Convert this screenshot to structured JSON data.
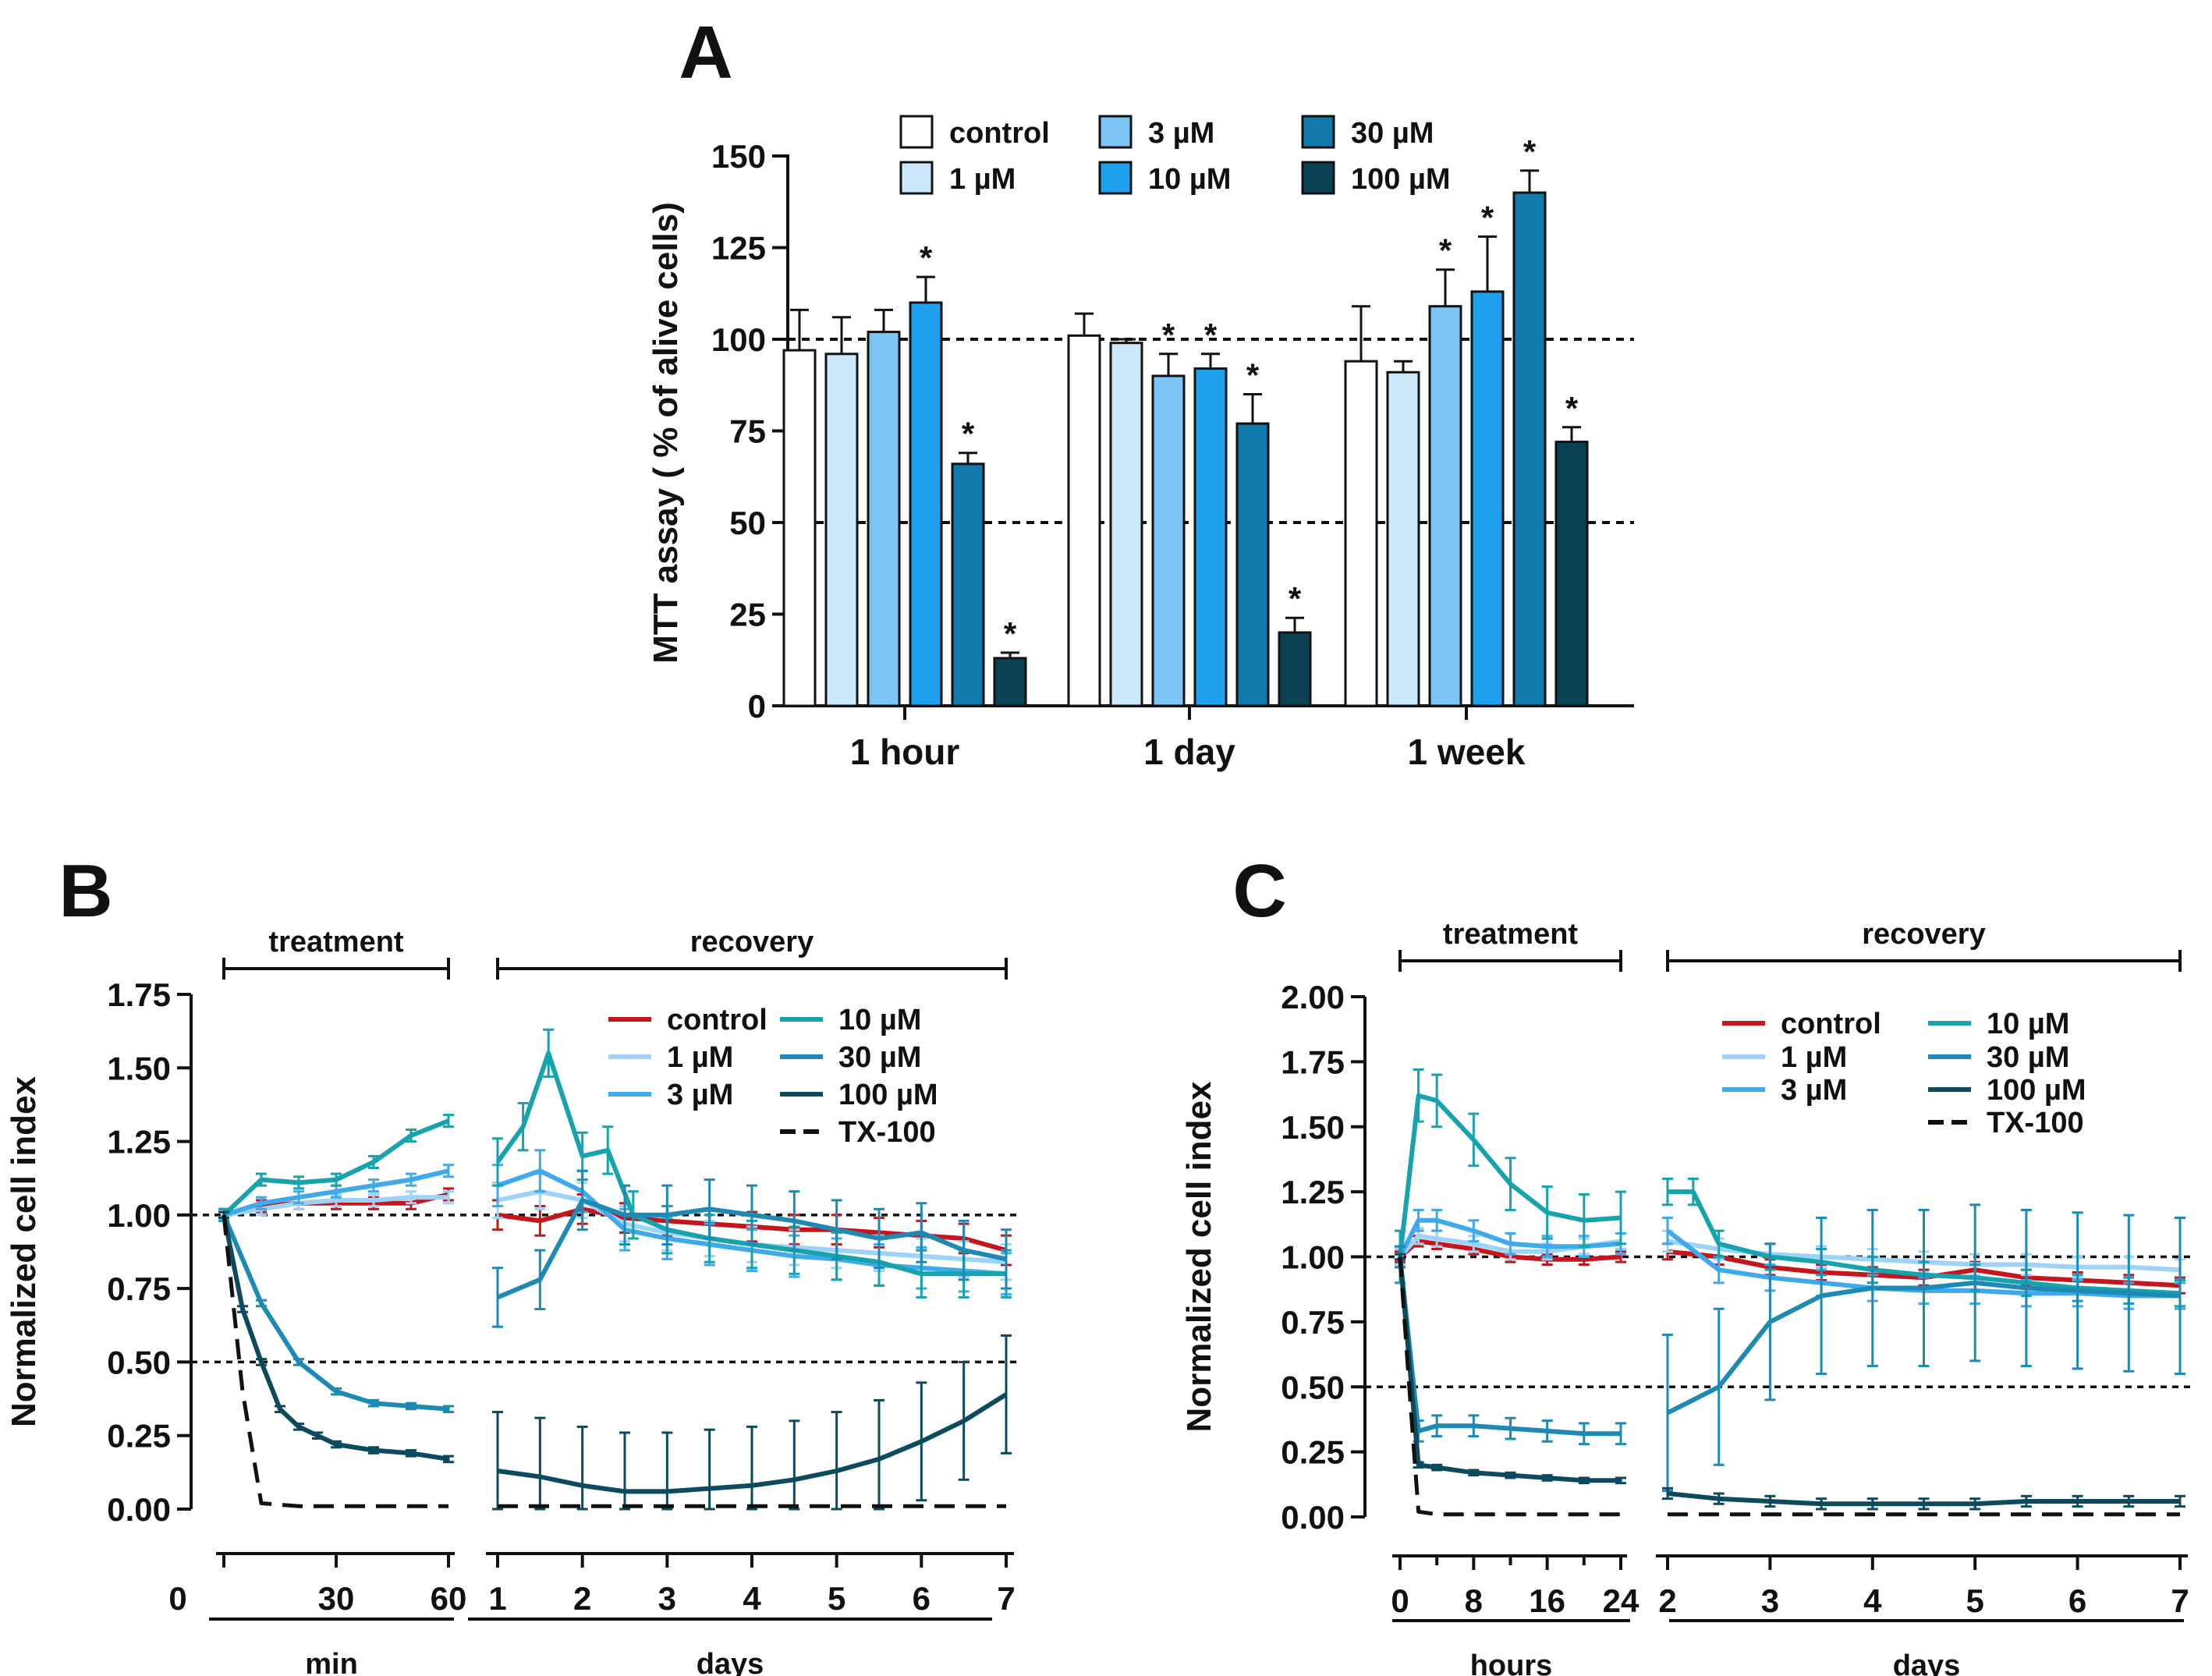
{
  "chart_data": [
    {
      "panel": "A",
      "type": "bar",
      "ylabel": "MTT assay ( % of alive cells)",
      "ylim": [
        0,
        150
      ],
      "yticks": [
        "0",
        "25",
        "50",
        "75",
        "100",
        "125",
        "150"
      ],
      "reference_lines": [
        100,
        50
      ],
      "categories": [
        "1 hour",
        "1 day",
        "1 week"
      ],
      "series": [
        {
          "name": "control",
          "color": "#ffffff",
          "values": [
            97,
            101,
            94
          ],
          "errors": [
            11,
            6,
            15
          ],
          "significant": [
            false,
            false,
            false
          ]
        },
        {
          "name": "1 µM",
          "color": "#cce9fb",
          "values": [
            96,
            99,
            91
          ],
          "errors": [
            10,
            1,
            3
          ],
          "significant": [
            false,
            false,
            false
          ]
        },
        {
          "name": "3 µM",
          "color": "#7cc4f5",
          "values": [
            102,
            90,
            109
          ],
          "errors": [
            6,
            6,
            10
          ],
          "significant": [
            false,
            true,
            true
          ]
        },
        {
          "name": "10 µM",
          "color": "#1ea1ef",
          "values": [
            110,
            92,
            113
          ],
          "errors": [
            7,
            4,
            15
          ],
          "significant": [
            true,
            true,
            true
          ]
        },
        {
          "name": "30 µM",
          "color": "#127aac",
          "values": [
            66,
            77,
            140
          ],
          "errors": [
            3,
            8,
            6
          ],
          "significant": [
            true,
            true,
            true
          ]
        },
        {
          "name": "100 µM",
          "color": "#0b4155",
          "values": [
            13,
            20,
            72
          ],
          "errors": [
            1.5,
            4,
            4
          ],
          "significant": [
            true,
            true,
            true
          ]
        }
      ],
      "significance_marker": "*"
    },
    {
      "panel": "B",
      "type": "line",
      "ylabel": "Normalized cell index",
      "ylim": [
        0,
        1.75
      ],
      "yticks": [
        "0.00",
        "0.25",
        "0.50",
        "0.75",
        "1.00",
        "1.25",
        "1.50",
        "1.75"
      ],
      "reference_lines": [
        1.0,
        0.5
      ],
      "phases": [
        "treatment",
        "recovery"
      ],
      "treatment_axis": {
        "label": "min",
        "range": [
          0,
          60
        ],
        "ticks": [
          "30",
          "60"
        ],
        "zero_label": "0"
      },
      "recovery_axis": {
        "label": "days",
        "range": [
          1,
          7
        ],
        "ticks": [
          "1",
          "2",
          "3",
          "4",
          "5",
          "6",
          "7"
        ]
      },
      "series": [
        {
          "name": "control",
          "color": "#c4161c",
          "treatment": {
            "x": [
              0,
              10,
              20,
              30,
              40,
              50,
              60
            ],
            "y": [
              1.0,
              1.03,
              1.04,
              1.04,
              1.04,
              1.04,
              1.07
            ],
            "err": 0.02
          },
          "recovery": {
            "x": [
              1,
              1.5,
              2,
              2.5,
              3,
              3.5,
              4,
              4.5,
              5,
              5.5,
              6,
              6.5,
              7
            ],
            "y": [
              1.0,
              0.98,
              1.02,
              0.99,
              0.98,
              0.97,
              0.96,
              0.95,
              0.95,
              0.94,
              0.93,
              0.92,
              0.88
            ],
            "err": 0.05
          }
        },
        {
          "name": "1 µM",
          "color": "#9cd3f7",
          "treatment": {
            "x": [
              0,
              10,
              20,
              30,
              40,
              50,
              60
            ],
            "y": [
              1.0,
              1.02,
              1.04,
              1.05,
              1.05,
              1.06,
              1.06
            ],
            "err": 0.02
          },
          "recovery": {
            "x": [
              1,
              1.5,
              2,
              2.5,
              3,
              3.5,
              4,
              4.5,
              5,
              5.5,
              6,
              6.5,
              7
            ],
            "y": [
              1.05,
              1.08,
              1.05,
              0.97,
              0.94,
              0.92,
              0.9,
              0.89,
              0.88,
              0.87,
              0.86,
              0.85,
              0.84
            ],
            "err": 0.06
          }
        },
        {
          "name": "3 µM",
          "color": "#3ea9ec",
          "treatment": {
            "x": [
              0,
              10,
              20,
              30,
              40,
              50,
              60
            ],
            "y": [
              1.0,
              1.04,
              1.06,
              1.08,
              1.1,
              1.12,
              1.15
            ],
            "err": 0.02
          },
          "recovery": {
            "x": [
              1,
              1.5,
              2,
              2.5,
              3,
              3.5,
              4,
              4.5,
              5,
              5.5,
              6,
              6.5,
              7
            ],
            "y": [
              1.1,
              1.15,
              1.08,
              0.95,
              0.92,
              0.9,
              0.88,
              0.86,
              0.85,
              0.83,
              0.82,
              0.81,
              0.8
            ],
            "err": 0.07
          }
        },
        {
          "name": "10 µM",
          "color": "#16a3ad",
          "treatment": {
            "x": [
              0,
              10,
              20,
              30,
              40,
              50,
              60
            ],
            "y": [
              1.0,
              1.12,
              1.11,
              1.12,
              1.18,
              1.27,
              1.32
            ],
            "err": 0.02
          },
          "recovery": {
            "x": [
              1,
              1.3,
              1.6,
              2,
              2.3,
              2.6,
              3,
              3.5,
              4,
              4.5,
              5,
              5.5,
              6,
              6.5,
              7
            ],
            "y": [
              1.18,
              1.3,
              1.55,
              1.2,
              1.22,
              1.0,
              0.95,
              0.92,
              0.9,
              0.88,
              0.86,
              0.84,
              0.8,
              0.8,
              0.8
            ],
            "err": 0.08
          }
        },
        {
          "name": "30 µM",
          "color": "#1d8ab4",
          "treatment": {
            "x": [
              0,
              10,
              20,
              30,
              40,
              50,
              60
            ],
            "y": [
              1.0,
              0.7,
              0.5,
              0.4,
              0.36,
              0.35,
              0.34
            ],
            "err": 0.01
          },
          "recovery": {
            "x": [
              1,
              1.5,
              2,
              2.5,
              3,
              3.5,
              4,
              4.5,
              5,
              5.5,
              6,
              6.5,
              7
            ],
            "y": [
              0.72,
              0.78,
              1.05,
              1.0,
              1.0,
              1.02,
              1.0,
              0.98,
              0.95,
              0.92,
              0.94,
              0.88,
              0.85
            ],
            "err": 0.1
          }
        },
        {
          "name": "100 µM",
          "color": "#0d4a5e",
          "treatment": {
            "x": [
              0,
              5,
              10,
              15,
              20,
              25,
              30,
              40,
              50,
              60
            ],
            "y": [
              1.0,
              0.68,
              0.5,
              0.34,
              0.28,
              0.25,
              0.22,
              0.2,
              0.19,
              0.17
            ],
            "err": 0.01
          },
          "recovery": {
            "x": [
              1,
              1.5,
              2,
              2.5,
              3,
              3.5,
              4,
              4.5,
              5,
              5.5,
              6,
              6.5,
              7
            ],
            "y": [
              0.13,
              0.11,
              0.08,
              0.06,
              0.06,
              0.07,
              0.08,
              0.1,
              0.13,
              0.17,
              0.23,
              0.3,
              0.39
            ],
            "err": 0.2
          }
        },
        {
          "name": "TX-100",
          "color": "#111111",
          "dashed": true,
          "treatment": {
            "x": [
              0,
              5,
              10,
              20,
              40,
              60
            ],
            "y": [
              1.0,
              0.4,
              0.02,
              0.01,
              0.01,
              0.01
            ],
            "err": 0
          },
          "recovery": {
            "x": [
              1,
              7
            ],
            "y": [
              0.01,
              0.01
            ],
            "err": 0
          }
        }
      ]
    },
    {
      "panel": "C",
      "type": "line",
      "ylabel": "Normalized cell index",
      "ylim": [
        0,
        2.0
      ],
      "yticks": [
        "0.00",
        "0.25",
        "0.50",
        "0.75",
        "1.00",
        "1.25",
        "1.50",
        "1.75",
        "2.00"
      ],
      "reference_lines": [
        1.0,
        0.5
      ],
      "phases": [
        "treatment",
        "recovery"
      ],
      "treatment_axis": {
        "label": "hours",
        "range": [
          0,
          24
        ],
        "ticks": [
          "0",
          "8",
          "16",
          "24"
        ],
        "minor": [
          4,
          12,
          20
        ]
      },
      "recovery_axis": {
        "label": "days",
        "range": [
          2,
          7
        ],
        "ticks": [
          "2",
          "3",
          "4",
          "5",
          "6",
          "7"
        ]
      },
      "series": [
        {
          "name": "control",
          "color": "#c4161c",
          "treatment": {
            "x": [
              0,
              2,
              4,
              8,
              12,
              16,
              20,
              24
            ],
            "y": [
              1.0,
              1.06,
              1.05,
              1.03,
              1.0,
              0.99,
              0.99,
              1.0
            ],
            "err": 0.02
          },
          "recovery": {
            "x": [
              2,
              2.5,
              3,
              3.5,
              4,
              4.5,
              5,
              5.5,
              6,
              6.5,
              7
            ],
            "y": [
              1.02,
              1.0,
              0.96,
              0.94,
              0.93,
              0.92,
              0.95,
              0.92,
              0.91,
              0.9,
              0.89
            ],
            "err": 0.03
          }
        },
        {
          "name": "1 µM",
          "color": "#9cd3f7",
          "treatment": {
            "x": [
              0,
              2,
              4,
              8,
              12,
              16,
              20,
              24
            ],
            "y": [
              1.0,
              1.08,
              1.07,
              1.05,
              1.02,
              1.02,
              1.04,
              1.06
            ],
            "err": 0.03
          },
          "recovery": {
            "x": [
              2,
              2.5,
              3,
              3.5,
              4,
              4.5,
              5,
              5.5,
              6,
              6.5,
              7
            ],
            "y": [
              1.06,
              1.03,
              1.01,
              1.0,
              0.99,
              0.98,
              0.97,
              0.97,
              0.96,
              0.96,
              0.95
            ],
            "err": 0.04
          }
        },
        {
          "name": "3 µM",
          "color": "#3ea9ec",
          "treatment": {
            "x": [
              0,
              2,
              4,
              8,
              12,
              16,
              20,
              24
            ],
            "y": [
              1.0,
              1.14,
              1.14,
              1.1,
              1.05,
              1.04,
              1.04,
              1.05
            ],
            "err": 0.04
          },
          "recovery": {
            "x": [
              2,
              2.5,
              3,
              3.5,
              4,
              4.5,
              5,
              5.5,
              6,
              6.5,
              7
            ],
            "y": [
              1.1,
              0.95,
              0.92,
              0.9,
              0.88,
              0.87,
              0.87,
              0.86,
              0.86,
              0.85,
              0.85
            ],
            "err": 0.05
          }
        },
        {
          "name": "10 µM",
          "color": "#16a3ad",
          "treatment": {
            "x": [
              0,
              2,
              4,
              8,
              12,
              16,
              20,
              24
            ],
            "y": [
              1.0,
              1.62,
              1.6,
              1.45,
              1.28,
              1.17,
              1.14,
              1.15
            ],
            "err": 0.1
          },
          "recovery": {
            "x": [
              2,
              2.25,
              2.5,
              3,
              3.5,
              4,
              4.5,
              5,
              5.5,
              6,
              6.5,
              7
            ],
            "y": [
              1.25,
              1.25,
              1.05,
              1.0,
              0.98,
              0.95,
              0.93,
              0.92,
              0.9,
              0.88,
              0.87,
              0.86
            ],
            "err": 0.05
          }
        },
        {
          "name": "30 µM",
          "color": "#1d8ab4",
          "treatment": {
            "x": [
              0,
              2,
              4,
              8,
              12,
              16,
              20,
              24
            ],
            "y": [
              1.0,
              0.33,
              0.35,
              0.35,
              0.34,
              0.33,
              0.32,
              0.32
            ],
            "err": 0.04
          },
          "recovery": {
            "x": [
              2,
              2.5,
              3,
              3.5,
              4,
              4.5,
              5,
              5.5,
              6,
              6.5,
              7
            ],
            "y": [
              0.4,
              0.5,
              0.75,
              0.85,
              0.88,
              0.88,
              0.9,
              0.88,
              0.87,
              0.86,
              0.85
            ],
            "err": 0.3
          }
        },
        {
          "name": "100 µM",
          "color": "#0d4a5e",
          "treatment": {
            "x": [
              0,
              2,
              4,
              8,
              12,
              16,
              20,
              24
            ],
            "y": [
              1.0,
              0.2,
              0.19,
              0.17,
              0.16,
              0.15,
              0.14,
              0.14
            ],
            "err": 0.01
          },
          "recovery": {
            "x": [
              2,
              2.5,
              3,
              3.5,
              4,
              4.5,
              5,
              5.5,
              6,
              6.5,
              7
            ],
            "y": [
              0.09,
              0.07,
              0.06,
              0.05,
              0.05,
              0.05,
              0.05,
              0.06,
              0.06,
              0.06,
              0.06
            ],
            "err": 0.02
          }
        },
        {
          "name": "TX-100",
          "color": "#111111",
          "dashed": true,
          "treatment": {
            "x": [
              0,
              1,
              2,
              4,
              12,
              24
            ],
            "y": [
              1.0,
              0.5,
              0.02,
              0.01,
              0.01,
              0.01
            ],
            "err": 0
          },
          "recovery": {
            "x": [
              2,
              7
            ],
            "y": [
              0.01,
              0.01
            ],
            "err": 0
          }
        }
      ]
    }
  ]
}
